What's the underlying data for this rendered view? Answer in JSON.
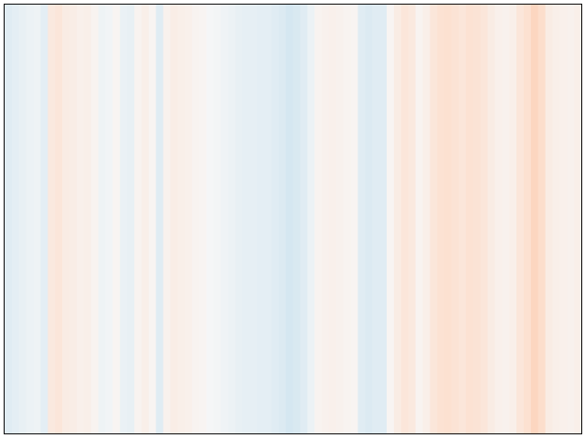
{
  "chart_data": {
    "type": "heatmap",
    "title": "",
    "xlabel": "",
    "ylabel": "",
    "axes_visible": false,
    "grid": false,
    "legend": "none",
    "frame_color": "#000000",
    "colormap": "RdBu_r",
    "value_range": [
      -1,
      1
    ],
    "values": [
      -0.12,
      -0.1,
      -0.08,
      -0.06,
      -0.05,
      -0.1,
      0.1,
      0.12,
      0.08,
      0.07,
      0.05,
      0.06,
      0.03,
      -0.05,
      -0.03,
      0.02,
      -0.07,
      -0.08,
      0.03,
      0.06,
      0.02,
      -0.12,
      0.04,
      0.07,
      0.06,
      0.05,
      0.03,
      0.02,
      -0.01,
      -0.02,
      -0.04,
      -0.06,
      -0.08,
      -0.09,
      -0.09,
      -0.1,
      -0.1,
      -0.12,
      -0.14,
      -0.18,
      -0.16,
      -0.12,
      -0.06,
      0.03,
      0.04,
      0.05,
      0.04,
      0.03,
      0.02,
      -0.12,
      -0.14,
      -0.12,
      -0.12,
      0.02,
      0.08,
      0.12,
      0.1,
      0.03,
      0.06,
      0.12,
      0.15,
      0.16,
      0.14,
      0.12,
      0.15,
      0.14,
      0.12,
      0.08,
      0.05,
      0.04,
      0.06,
      0.12,
      0.16,
      0.22,
      0.18,
      0.08,
      0.06,
      0.05,
      0.04,
      0.06
    ]
  }
}
